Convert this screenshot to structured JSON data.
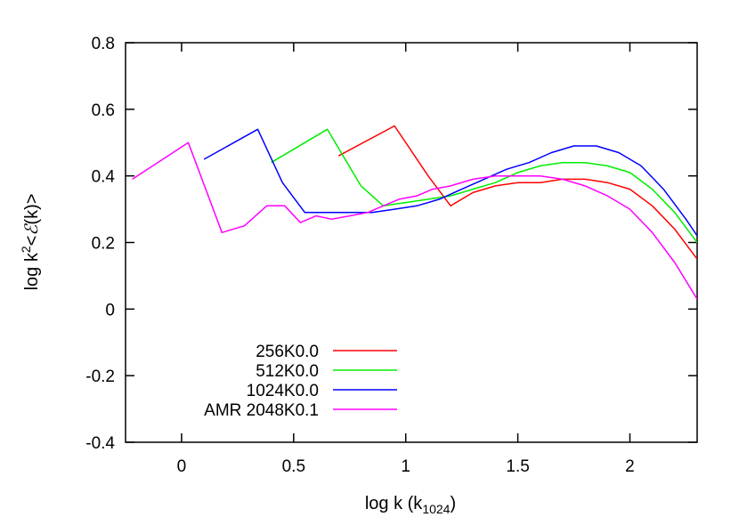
{
  "chart_data": {
    "type": "line",
    "xlabel": {
      "prefix": "log k (k",
      "sub": "1024",
      "suffix": ")"
    },
    "ylabel": {
      "prefix": "log k",
      "sup": "2",
      "middle": "<",
      "script": "ℰ",
      "suffix": "(k)>"
    },
    "xlim": [
      -0.25,
      2.3
    ],
    "ylim": [
      -0.4,
      0.8
    ],
    "xticks": [
      {
        "value": 0,
        "label": "0"
      },
      {
        "value": 0.5,
        "label": "0.5"
      },
      {
        "value": 1,
        "label": "1"
      },
      {
        "value": 1.5,
        "label": "1.5"
      },
      {
        "value": 2,
        "label": "2"
      }
    ],
    "yticks": [
      {
        "value": -0.4,
        "label": "-0.4"
      },
      {
        "value": -0.2,
        "label": "-0.2"
      },
      {
        "value": 0,
        "label": "0"
      },
      {
        "value": 0.2,
        "label": "0.2"
      },
      {
        "value": 0.4,
        "label": "0.4"
      },
      {
        "value": 0.6,
        "label": "0.6"
      },
      {
        "value": 0.8,
        "label": "0.8"
      }
    ],
    "grid": false,
    "legend_position": "bottom-left",
    "series": [
      {
        "name": "256K0.0",
        "color": "#ff0000",
        "x": [
          0.7,
          0.95,
          1.1,
          1.2,
          1.3,
          1.4,
          1.5,
          1.6,
          1.7,
          1.8,
          1.9,
          2.0,
          2.1,
          2.2,
          2.3
        ],
        "y": [
          0.46,
          0.55,
          0.4,
          0.31,
          0.35,
          0.37,
          0.38,
          0.38,
          0.39,
          0.39,
          0.38,
          0.36,
          0.31,
          0.24,
          0.15
        ]
      },
      {
        "name": "512K0.0",
        "color": "#00ee00",
        "x": [
          0.4,
          0.65,
          0.8,
          0.9,
          1.0,
          1.1,
          1.2,
          1.3,
          1.4,
          1.5,
          1.6,
          1.7,
          1.8,
          1.9,
          2.0,
          2.1,
          2.2,
          2.3
        ],
        "y": [
          0.44,
          0.54,
          0.37,
          0.31,
          0.32,
          0.33,
          0.34,
          0.36,
          0.38,
          0.41,
          0.43,
          0.44,
          0.44,
          0.43,
          0.41,
          0.36,
          0.29,
          0.2
        ]
      },
      {
        "name": "1024K0.0",
        "color": "#0000ff",
        "x": [
          0.1,
          0.34,
          0.45,
          0.55,
          0.65,
          0.75,
          0.85,
          0.95,
          1.05,
          1.15,
          1.25,
          1.35,
          1.45,
          1.55,
          1.65,
          1.75,
          1.85,
          1.95,
          2.05,
          2.15,
          2.25,
          2.3
        ],
        "y": [
          0.45,
          0.54,
          0.38,
          0.29,
          0.29,
          0.29,
          0.29,
          0.3,
          0.31,
          0.33,
          0.36,
          0.39,
          0.42,
          0.44,
          0.47,
          0.49,
          0.49,
          0.47,
          0.43,
          0.36,
          0.27,
          0.22
        ]
      },
      {
        "name": "AMR 2048K0.1",
        "color": "#ff00ff",
        "x": [
          -0.22,
          0.03,
          0.18,
          0.28,
          0.38,
          0.46,
          0.53,
          0.6,
          0.67,
          0.75,
          0.83,
          0.9,
          0.97,
          1.05,
          1.12,
          1.2,
          1.3,
          1.4,
          1.5,
          1.6,
          1.7,
          1.8,
          1.9,
          2.0,
          2.1,
          2.2,
          2.3
        ],
        "y": [
          0.39,
          0.5,
          0.23,
          0.25,
          0.31,
          0.31,
          0.26,
          0.28,
          0.27,
          0.28,
          0.29,
          0.31,
          0.33,
          0.34,
          0.36,
          0.37,
          0.39,
          0.4,
          0.4,
          0.4,
          0.39,
          0.37,
          0.34,
          0.3,
          0.23,
          0.14,
          0.03
        ]
      }
    ]
  }
}
